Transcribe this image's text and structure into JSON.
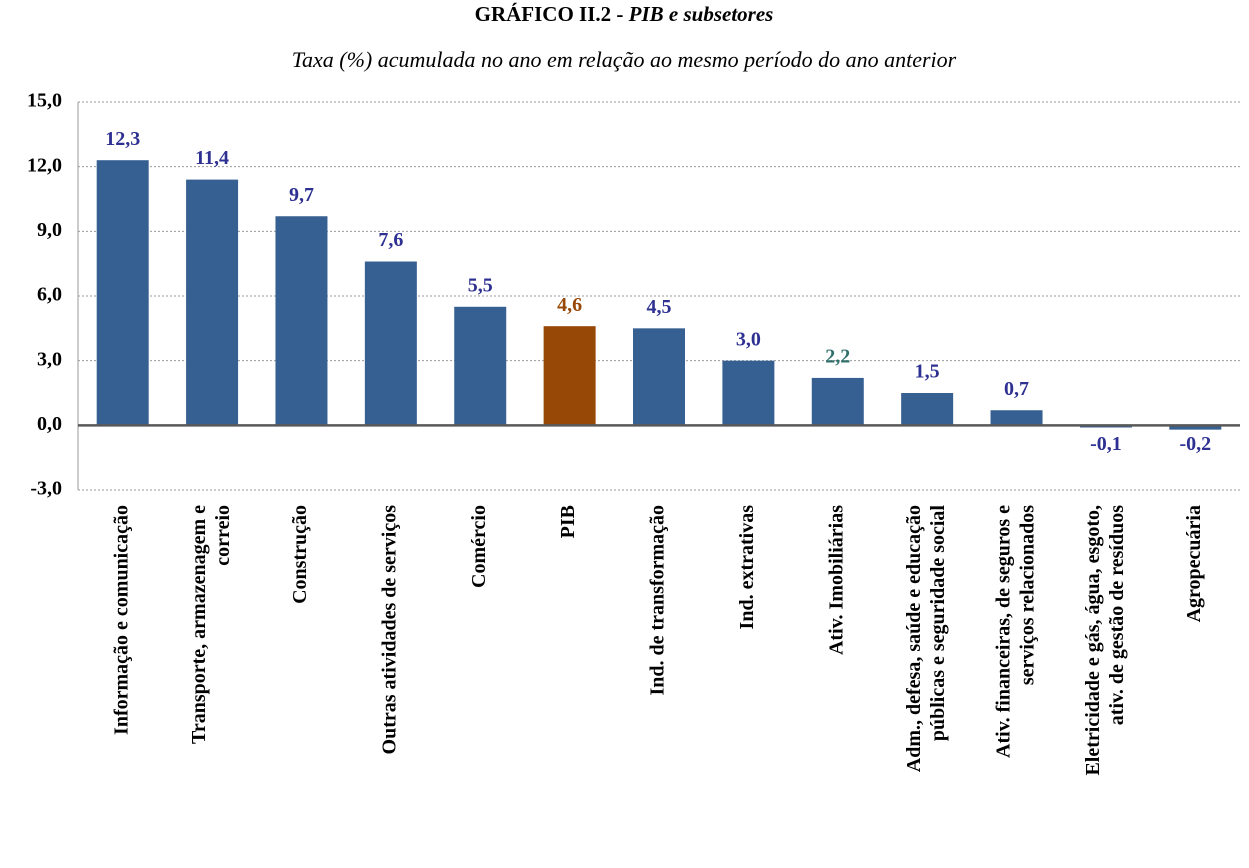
{
  "chart_data": {
    "type": "bar",
    "title": "GRÁFICO II.2 -",
    "title_italic": "PIB e subsetores",
    "subtitle": "Taxa (%) acumulada no ano em relação ao  mesmo período do ano anterior",
    "categories": [
      "Informação e comunicação",
      "Transporte, armazenagem e\ncorreio",
      "Construção",
      "Outras atividades de serviços",
      "Comércio",
      "PIB",
      "Ind. de transformação",
      "Ind. extrativas",
      "Ativ. Imobiliárias",
      "Adm., defesa, saúde e educação\npúblicas e seguridade social",
      "Ativ. financeiras, de seguros e\nserviços relacionados",
      "Eletricidade e gás, água, esgoto,\nativ. de gestão de resíduos",
      "Agropecuária"
    ],
    "values": [
      12.3,
      11.4,
      9.7,
      7.6,
      5.5,
      4.6,
      4.5,
      3.0,
      2.2,
      1.5,
      0.7,
      -0.1,
      -0.2
    ],
    "value_labels": [
      "12,3",
      "11,4",
      "9,7",
      "7,6",
      "5,5",
      "4,6",
      "4,5",
      "3,0",
      "2,2",
      "1,5",
      "0,7",
      "-0,1",
      "-0,2"
    ],
    "colors": [
      "#376092",
      "#376092",
      "#376092",
      "#376092",
      "#376092",
      "#974806",
      "#376092",
      "#376092",
      "#376092",
      "#376092",
      "#376092",
      "#376092",
      "#376092"
    ],
    "label_colors": [
      "#2e3192",
      "#2e3192",
      "#2e3192",
      "#2e3192",
      "#2e3192",
      "#974806",
      "#2e3192",
      "#2e3192",
      "#31706b",
      "#2e3192",
      "#2e3192",
      "#2e3192",
      "#2e3192"
    ],
    "ylim": [
      -3,
      15
    ],
    "yticks": [
      {
        "value": -3,
        "label": "-3,0"
      },
      {
        "value": 0,
        "label": "0,0"
      },
      {
        "value": 3,
        "label": "3,0"
      },
      {
        "value": 6,
        "label": "6,0"
      },
      {
        "value": 9,
        "label": "9,0"
      },
      {
        "value": 12,
        "label": "12,0"
      },
      {
        "value": 15,
        "label": "15,0"
      }
    ],
    "grid": true
  }
}
